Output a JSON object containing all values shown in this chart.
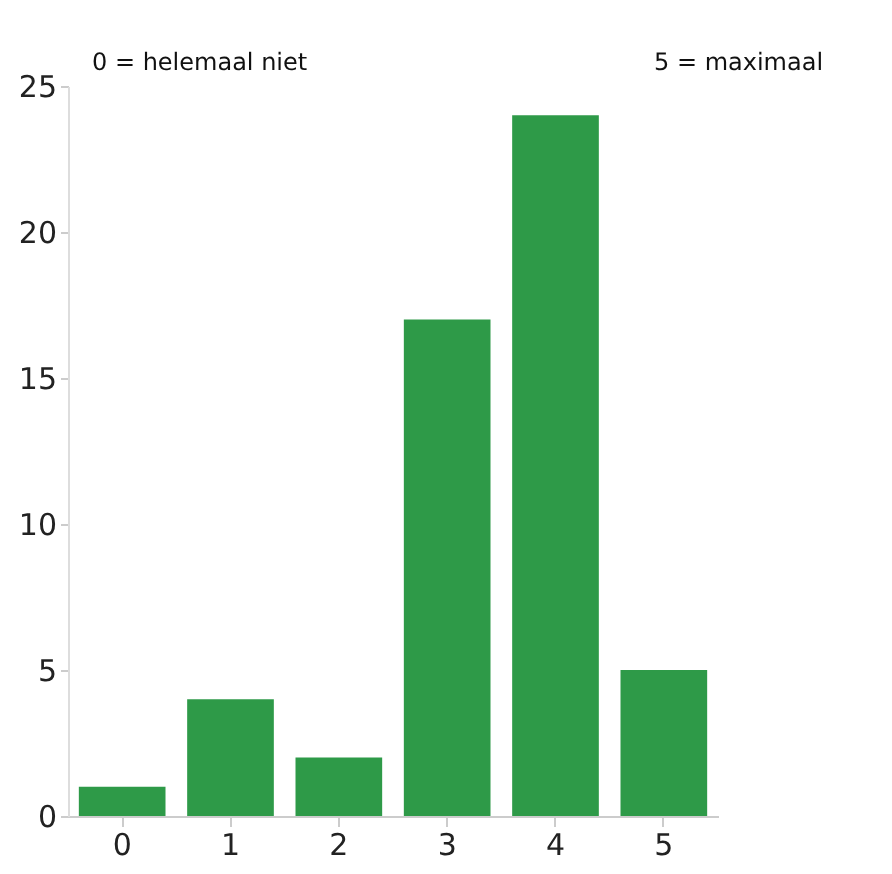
{
  "chart_data": {
    "type": "bar",
    "categories": [
      "0",
      "1",
      "2",
      "3",
      "4",
      "5"
    ],
    "values": [
      1,
      4,
      2,
      17,
      24,
      5
    ],
    "color": "#2e9a48",
    "ylim": [
      0,
      25
    ],
    "yticks": [
      0,
      5,
      10,
      15,
      20,
      25
    ],
    "grid": false,
    "annotations": [
      "0 = helemaal niet",
      "5 = maximaal"
    ]
  }
}
